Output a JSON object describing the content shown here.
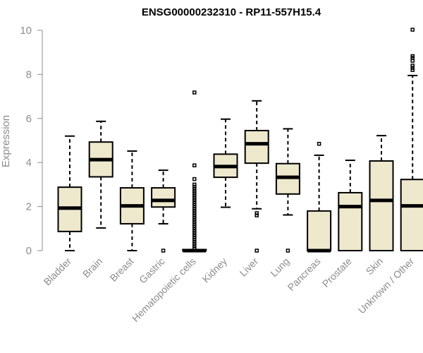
{
  "chart_data": {
    "type": "boxplot",
    "title": "ENSG00000232310 - RP11-557H15.4",
    "xlabel": "",
    "ylabel": "Expression",
    "ylim": [
      0,
      10
    ],
    "yticks": [
      0,
      2,
      4,
      6,
      8,
      10
    ],
    "grid": false,
    "box_color": "#EEE8CD",
    "categories": [
      "Bladder",
      "Brain",
      "Breast",
      "Gastric",
      "Hematopoietic cells",
      "Kidney",
      "Liver",
      "Lung",
      "Pancreas",
      "Prostate",
      "Skin",
      "Unknown / Other"
    ],
    "series": [
      {
        "name": "Bladder",
        "min": 0.0,
        "q1": 0.87,
        "median": 1.93,
        "q3": 2.88,
        "max": 5.2,
        "outliers": []
      },
      {
        "name": "Brain",
        "min": 1.03,
        "q1": 3.35,
        "median": 4.13,
        "q3": 4.93,
        "max": 5.87,
        "outliers": []
      },
      {
        "name": "Breast",
        "min": 0.0,
        "q1": 1.22,
        "median": 2.03,
        "q3": 2.85,
        "max": 4.52,
        "outliers": []
      },
      {
        "name": "Gastric",
        "min": 1.22,
        "q1": 1.98,
        "median": 2.28,
        "q3": 2.85,
        "max": 3.65,
        "outliers": [
          0.0
        ]
      },
      {
        "name": "Hematopoietic cells",
        "min": 0.0,
        "q1": 0.0,
        "median": 0.0,
        "q3": 0.05,
        "max": 0.05,
        "outliers": [
          7.18,
          3.87,
          3.25,
          3.0,
          2.9,
          2.8,
          2.7,
          2.6,
          2.5,
          2.4,
          2.3,
          2.2,
          2.1,
          2.0,
          1.9,
          1.8,
          1.7,
          1.6,
          1.5,
          1.4,
          1.3,
          1.2,
          1.1,
          1.0,
          0.9,
          0.8,
          0.7,
          0.6,
          0.5,
          0.4,
          0.3,
          0.2,
          0.1
        ]
      },
      {
        "name": "Kidney",
        "min": 1.97,
        "q1": 3.33,
        "median": 3.82,
        "q3": 4.38,
        "max": 5.97,
        "outliers": []
      },
      {
        "name": "Liver",
        "min": 1.9,
        "q1": 3.97,
        "median": 4.85,
        "q3": 5.45,
        "max": 6.8,
        "outliers": [
          1.7,
          1.6,
          0.0
        ]
      },
      {
        "name": "Lung",
        "min": 1.62,
        "q1": 2.57,
        "median": 3.33,
        "q3": 3.95,
        "max": 5.53,
        "outliers": [
          0.0
        ]
      },
      {
        "name": "Pancreas",
        "min": 0.0,
        "q1": 0.0,
        "median": 0.0,
        "q3": 1.8,
        "max": 4.33,
        "outliers": [
          4.85
        ]
      },
      {
        "name": "Prostate",
        "min": 0.0,
        "q1": 0.0,
        "median": 2.0,
        "q3": 2.63,
        "max": 4.1,
        "outliers": []
      },
      {
        "name": "Skin",
        "min": 0.0,
        "q1": 0.0,
        "median": 2.28,
        "q3": 4.07,
        "max": 5.22,
        "outliers": []
      },
      {
        "name": "Unknown / Other",
        "min": 0.0,
        "q1": 0.0,
        "median": 2.03,
        "q3": 3.23,
        "max": 7.95,
        "outliers": [
          10.03,
          8.83,
          8.75,
          8.62,
          8.4,
          8.3,
          8.2
        ]
      }
    ]
  }
}
